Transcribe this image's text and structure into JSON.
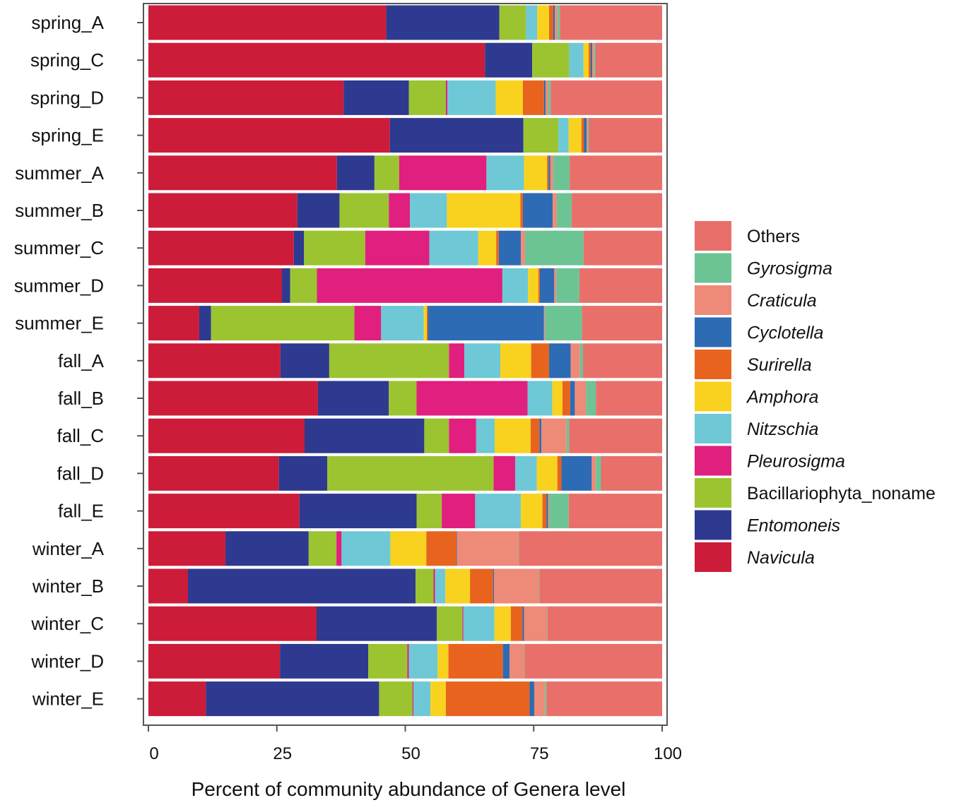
{
  "chart_data": {
    "type": "bar",
    "orientation": "horizontal",
    "stacked": true,
    "xlabel": "Percent of community abundance of Genera level",
    "xlim": [
      0,
      100
    ],
    "xticks": [
      "0",
      "25",
      "50",
      "75",
      "100"
    ],
    "grid": false,
    "legend_position": "right",
    "categories": [
      "spring_A",
      "spring_C",
      "spring_D",
      "spring_E",
      "summer_A",
      "summer_B",
      "summer_C",
      "summer_D",
      "summer_E",
      "fall_A",
      "fall_B",
      "fall_C",
      "fall_D",
      "fall_E",
      "winter_A",
      "winter_B",
      "winter_C",
      "winter_D",
      "winter_E"
    ],
    "series": [
      {
        "name": "Navicula",
        "italic": true,
        "color": "#CC1C39",
        "values": [
          46.3,
          65.5,
          38,
          47,
          36.7,
          29,
          28.3,
          26,
          9.9,
          25.7,
          33,
          30.4,
          25.4,
          29.4,
          15,
          7.7,
          33,
          25.6,
          11.2
        ]
      },
      {
        "name": "Entomoneis",
        "italic": true,
        "color": "#2D3A8F",
        "values": [
          22,
          9.2,
          12.7,
          26,
          7.3,
          8.2,
          2,
          1.6,
          2.3,
          9.5,
          13.8,
          23.3,
          9.4,
          22.8,
          16.2,
          44.3,
          23.6,
          17.2,
          33.7
        ]
      },
      {
        "name": "Bacillariophyta_noname",
        "italic": false,
        "color": "#9BC430",
        "values": [
          5.2,
          7.2,
          7.2,
          6.8,
          4.8,
          9.6,
          11.9,
          5.2,
          27.9,
          23.3,
          5.4,
          4.8,
          32.4,
          4.9,
          5.4,
          3.5,
          5,
          7.6,
          6.5
        ]
      },
      {
        "name": "Pleurosigma",
        "italic": true,
        "color": "#E01F7E",
        "values": [
          0,
          0,
          0.3,
          0,
          17,
          4.1,
          12.5,
          36.1,
          5.2,
          3,
          21.6,
          5.3,
          4.2,
          6.5,
          1,
          0.3,
          0.2,
          0.3,
          0.2
        ]
      },
      {
        "name": "Nitzschia",
        "italic": true,
        "color": "#6EC8D6",
        "values": [
          2.2,
          2.8,
          9.4,
          2,
          7.3,
          7.2,
          9.5,
          5,
          8.3,
          7,
          4.8,
          3.6,
          4.2,
          8.9,
          9.5,
          2,
          6.1,
          5.6,
          3.3
        ]
      },
      {
        "name": "Amphora",
        "italic": true,
        "color": "#F8D21F",
        "values": [
          2.3,
          1,
          5.3,
          2.5,
          4.5,
          14.3,
          3.5,
          2,
          0.6,
          6,
          2,
          7,
          4,
          4.2,
          7,
          4.8,
          3.2,
          2.1,
          3
        ]
      },
      {
        "name": "Surirella",
        "italic": true,
        "color": "#E8641E",
        "values": [
          0.8,
          0.4,
          4.1,
          0.5,
          0.3,
          0.5,
          0.5,
          0.3,
          0.2,
          3.5,
          1.5,
          1.7,
          0.8,
          0.8,
          5.9,
          4.5,
          2.3,
          10.6,
          16.3
        ]
      },
      {
        "name": "Cyclotella",
        "italic": true,
        "color": "#2D6BB4",
        "values": [
          0.3,
          0.3,
          0.3,
          0.5,
          0.3,
          5.8,
          4.3,
          2.8,
          22.6,
          4.2,
          0.9,
          0.4,
          5.9,
          0.3,
          0.1,
          0.2,
          0.3,
          1.3,
          0.9
        ]
      },
      {
        "name": "Craticula",
        "italic": true,
        "color": "#EE8A78",
        "values": [
          0.5,
          0.3,
          0.5,
          0.2,
          0.6,
          0.8,
          0.8,
          0.4,
          0.2,
          1.8,
          2.2,
          4.9,
          0.8,
          0.2,
          11.9,
          8.7,
          4.5,
          2.8,
          2.1
        ]
      },
      {
        "name": "Gyrosigma",
        "italic": true,
        "color": "#6CC495",
        "values": [
          0.5,
          0.3,
          0.5,
          0.2,
          3.2,
          2.9,
          11.4,
          4.5,
          7.2,
          0.6,
          1.9,
          0.5,
          1,
          3.8,
          0.1,
          0.1,
          0.1,
          0.1,
          0.3
        ]
      },
      {
        "name": "Others",
        "italic": false,
        "color": "#E9706A",
        "values": [
          19.9,
          13,
          21.7,
          14.3,
          18,
          17.6,
          15.3,
          16.1,
          15.6,
          15.4,
          12.9,
          18.1,
          11.9,
          18.2,
          27.9,
          23.9,
          22.5,
          26.8,
          22.5
        ]
      }
    ],
    "legend_order": [
      "Others",
      "Gyrosigma",
      "Craticula",
      "Cyclotella",
      "Surirella",
      "Amphora",
      "Nitzschia",
      "Pleurosigma",
      "Bacillariophyta_noname",
      "Entomoneis",
      "Navicula"
    ]
  }
}
